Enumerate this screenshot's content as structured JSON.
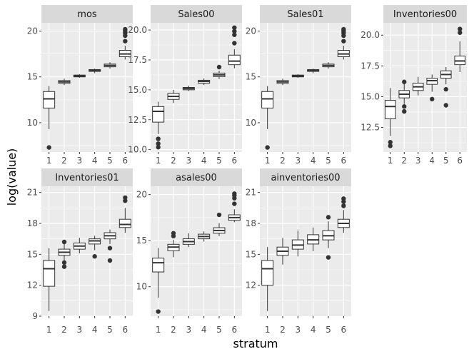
{
  "chart_data": {
    "type": "boxplot",
    "facet_layout": "wrap",
    "xlabel": "stratum",
    "ylabel": "log(value)",
    "x_categories": [
      "1",
      "2",
      "3",
      "4",
      "5",
      "6"
    ],
    "grid": true,
    "colors": {
      "panel_background": "#ebebeb",
      "gridline": "#ffffff",
      "strip_background": "#d9d9d9",
      "box_fill": "#ffffff",
      "box_line": "#333333",
      "outlier": "#333333"
    },
    "panels": [
      {
        "title": "mos",
        "ylim": [
          6.8,
          20.9
        ],
        "yticks": [
          10,
          15,
          20
        ],
        "ytick_labels": [
          "10",
          "15",
          "20"
        ],
        "boxes": [
          {
            "stratum": "1",
            "lower": 9.3,
            "q1": 11.6,
            "median": 12.6,
            "q3": 13.4,
            "upper": 14.0,
            "outliers": [
              7.3
            ]
          },
          {
            "stratum": "2",
            "lower": 14.1,
            "q1": 14.3,
            "median": 14.45,
            "q3": 14.6,
            "upper": 14.8,
            "outliers": []
          },
          {
            "stratum": "3",
            "lower": 14.9,
            "q1": 15.0,
            "median": 15.1,
            "q3": 15.2,
            "upper": 15.3,
            "outliers": []
          },
          {
            "stratum": "4",
            "lower": 15.4,
            "q1": 15.6,
            "median": 15.7,
            "q3": 15.8,
            "upper": 15.9,
            "outliers": []
          },
          {
            "stratum": "5",
            "lower": 15.9,
            "q1": 16.1,
            "median": 16.25,
            "q3": 16.4,
            "upper": 16.6,
            "outliers": []
          },
          {
            "stratum": "6",
            "lower": 16.9,
            "q1": 17.2,
            "median": 17.5,
            "q3": 17.9,
            "upper": 18.4,
            "outliers": [
              18.9,
              19.5,
              19.8,
              20.0,
              20.2
            ]
          }
        ]
      },
      {
        "title": "Sales00",
        "ylim": [
          9.8,
          20.6
        ],
        "yticks": [
          10.0,
          12.5,
          15.0,
          17.5,
          20.0
        ],
        "ytick_labels": [
          "10.0",
          "12.5",
          "15.0",
          "17.5",
          "20.0"
        ],
        "boxes": [
          {
            "stratum": "1",
            "lower": 11.3,
            "q1": 12.3,
            "median": 13.2,
            "q3": 13.6,
            "upper": 14.0,
            "outliers": [
              10.2,
              10.5,
              10.9
            ]
          },
          {
            "stratum": "2",
            "lower": 13.9,
            "q1": 14.2,
            "median": 14.45,
            "q3": 14.7,
            "upper": 15.0,
            "outliers": []
          },
          {
            "stratum": "3",
            "lower": 14.9,
            "q1": 15.0,
            "median": 15.1,
            "q3": 15.2,
            "upper": 15.35,
            "outliers": []
          },
          {
            "stratum": "4",
            "lower": 15.4,
            "q1": 15.55,
            "median": 15.7,
            "q3": 15.8,
            "upper": 15.95,
            "outliers": []
          },
          {
            "stratum": "5",
            "lower": 15.9,
            "q1": 16.1,
            "median": 16.25,
            "q3": 16.4,
            "upper": 16.6,
            "outliers": [
              16.9
            ]
          },
          {
            "stratum": "6",
            "lower": 16.8,
            "q1": 17.1,
            "median": 17.4,
            "q3": 17.9,
            "upper": 18.4,
            "outliers": [
              18.9,
              19.6,
              19.9,
              20.2
            ]
          }
        ]
      },
      {
        "title": "Sales01",
        "ylim": [
          6.8,
          20.9
        ],
        "yticks": [
          10,
          15,
          20
        ],
        "ytick_labels": [
          "10",
          "15",
          "20"
        ],
        "boxes": [
          {
            "stratum": "1",
            "lower": 9.3,
            "q1": 11.6,
            "median": 12.6,
            "q3": 13.4,
            "upper": 14.0,
            "outliers": [
              7.3
            ]
          },
          {
            "stratum": "2",
            "lower": 14.1,
            "q1": 14.3,
            "median": 14.45,
            "q3": 14.6,
            "upper": 14.8,
            "outliers": []
          },
          {
            "stratum": "3",
            "lower": 14.9,
            "q1": 15.0,
            "median": 15.1,
            "q3": 15.2,
            "upper": 15.3,
            "outliers": []
          },
          {
            "stratum": "4",
            "lower": 15.4,
            "q1": 15.6,
            "median": 15.7,
            "q3": 15.8,
            "upper": 15.9,
            "outliers": []
          },
          {
            "stratum": "5",
            "lower": 15.9,
            "q1": 16.1,
            "median": 16.25,
            "q3": 16.4,
            "upper": 16.6,
            "outliers": []
          },
          {
            "stratum": "6",
            "lower": 16.9,
            "q1": 17.2,
            "median": 17.5,
            "q3": 17.9,
            "upper": 18.4,
            "outliers": [
              18.9,
              19.5,
              19.8,
              20.0,
              20.2
            ]
          }
        ]
      },
      {
        "title": "Inventories00",
        "ylim": [
          10.5,
          21.0
        ],
        "yticks": [
          12.5,
          15.0,
          17.5,
          20.0
        ],
        "ytick_labels": [
          "12.5",
          "15.0",
          "17.5",
          "20.0"
        ],
        "boxes": [
          {
            "stratum": "1",
            "lower": 11.8,
            "q1": 13.2,
            "median": 14.2,
            "q3": 14.7,
            "upper": 15.7,
            "outliers": [
              11.0,
              11.3
            ]
          },
          {
            "stratum": "2",
            "lower": 14.4,
            "q1": 14.9,
            "median": 15.2,
            "q3": 15.5,
            "upper": 16.1,
            "outliers": [
              13.8,
              14.2,
              16.2
            ]
          },
          {
            "stratum": "3",
            "lower": 15.1,
            "q1": 15.5,
            "median": 15.8,
            "q3": 16.1,
            "upper": 16.6,
            "outliers": []
          },
          {
            "stratum": "4",
            "lower": 15.4,
            "q1": 16.0,
            "median": 16.3,
            "q3": 16.5,
            "upper": 16.8,
            "outliers": [
              14.8
            ]
          },
          {
            "stratum": "5",
            "lower": 16.0,
            "q1": 16.5,
            "median": 16.8,
            "q3": 17.1,
            "upper": 17.4,
            "outliers": [
              14.3,
              15.6
            ]
          },
          {
            "stratum": "6",
            "lower": 17.0,
            "q1": 17.6,
            "median": 17.9,
            "q3": 18.3,
            "upper": 19.5,
            "outliers": [
              20.2,
              20.5
            ]
          }
        ]
      },
      {
        "title": "Inventories01",
        "ylim": [
          9.0,
          21.6
        ],
        "yticks": [
          9,
          12,
          15,
          18,
          21
        ],
        "ytick_labels": [
          "9",
          "12",
          "15",
          "18",
          "21"
        ],
        "boxes": [
          {
            "stratum": "1",
            "lower": 9.5,
            "q1": 11.9,
            "median": 13.6,
            "q3": 14.4,
            "upper": 15.6,
            "outliers": []
          },
          {
            "stratum": "2",
            "lower": 14.4,
            "q1": 14.9,
            "median": 15.2,
            "q3": 15.5,
            "upper": 16.1,
            "outliers": [
              13.8,
              14.2,
              16.2
            ]
          },
          {
            "stratum": "3",
            "lower": 15.1,
            "q1": 15.5,
            "median": 15.8,
            "q3": 16.1,
            "upper": 16.6,
            "outliers": []
          },
          {
            "stratum": "4",
            "lower": 15.4,
            "q1": 16.0,
            "median": 16.3,
            "q3": 16.5,
            "upper": 16.8,
            "outliers": [
              14.8
            ]
          },
          {
            "stratum": "5",
            "lower": 16.0,
            "q1": 16.5,
            "median": 16.8,
            "q3": 17.1,
            "upper": 17.4,
            "outliers": [
              14.4,
              15.6
            ]
          },
          {
            "stratum": "6",
            "lower": 17.1,
            "q1": 17.6,
            "median": 17.9,
            "q3": 18.4,
            "upper": 19.5,
            "outliers": [
              20.2,
              20.5
            ]
          }
        ]
      },
      {
        "title": "asales00",
        "ylim": [
          6.8,
          20.9
        ],
        "yticks": [
          10,
          15,
          20
        ],
        "ytick_labels": [
          "10",
          "15",
          "20"
        ],
        "boxes": [
          {
            "stratum": "1",
            "lower": 8.8,
            "q1": 11.6,
            "median": 12.6,
            "q3": 13.1,
            "upper": 14.2,
            "outliers": [
              7.3
            ]
          },
          {
            "stratum": "2",
            "lower": 13.2,
            "q1": 13.9,
            "median": 14.3,
            "q3": 14.6,
            "upper": 15.1,
            "outliers": [
              15.5,
              15.8
            ]
          },
          {
            "stratum": "3",
            "lower": 14.3,
            "q1": 14.6,
            "median": 14.9,
            "q3": 15.2,
            "upper": 15.8,
            "outliers": []
          },
          {
            "stratum": "4",
            "lower": 14.9,
            "q1": 15.2,
            "median": 15.45,
            "q3": 15.7,
            "upper": 16.0,
            "outliers": []
          },
          {
            "stratum": "5",
            "lower": 15.5,
            "q1": 15.8,
            "median": 16.1,
            "q3": 16.4,
            "upper": 16.9,
            "outliers": [
              17.8
            ]
          },
          {
            "stratum": "6",
            "lower": 17.0,
            "q1": 17.2,
            "median": 17.5,
            "q3": 17.8,
            "upper": 18.4,
            "outliers": [
              19.0,
              19.6,
              19.9,
              20.1
            ]
          }
        ]
      },
      {
        "title": "ainventories00",
        "ylim": [
          9.0,
          21.6
        ],
        "yticks": [
          12,
          15,
          18,
          21
        ],
        "ytick_labels": [
          "12",
          "15",
          "18",
          "21"
        ],
        "boxes": [
          {
            "stratum": "1",
            "lower": 9.5,
            "q1": 12.0,
            "median": 13.6,
            "q3": 14.4,
            "upper": 15.7,
            "outliers": []
          },
          {
            "stratum": "2",
            "lower": 14.0,
            "q1": 14.9,
            "median": 15.3,
            "q3": 15.7,
            "upper": 16.6,
            "outliers": []
          },
          {
            "stratum": "3",
            "lower": 14.8,
            "q1": 15.5,
            "median": 15.9,
            "q3": 16.4,
            "upper": 17.3,
            "outliers": []
          },
          {
            "stratum": "4",
            "lower": 15.3,
            "q1": 16.0,
            "median": 16.4,
            "q3": 16.9,
            "upper": 17.6,
            "outliers": []
          },
          {
            "stratum": "5",
            "lower": 15.6,
            "q1": 16.4,
            "median": 16.8,
            "q3": 17.3,
            "upper": 18.2,
            "outliers": [
              14.7,
              18.6
            ]
          },
          {
            "stratum": "6",
            "lower": 17.1,
            "q1": 17.6,
            "median": 18.0,
            "q3": 18.4,
            "upper": 19.3,
            "outliers": [
              19.7,
              20.1,
              20.4
            ]
          }
        ]
      }
    ]
  }
}
